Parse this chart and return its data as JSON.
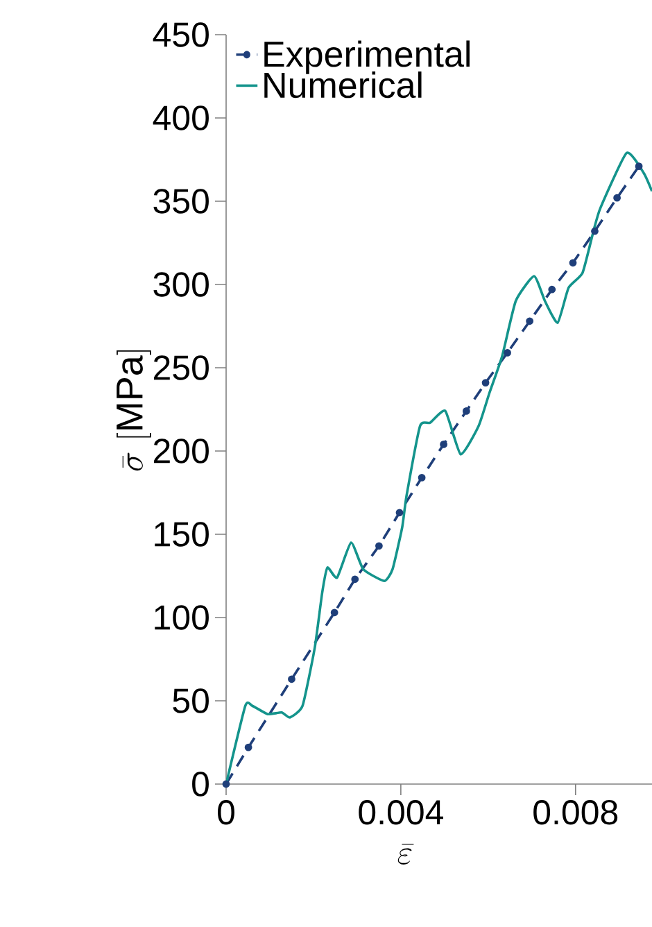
{
  "chart_data": {
    "type": "line",
    "xlabel": "\\bar{\\varepsilon}",
    "ylabel": "\\bar{\\sigma}\\ [\\mathrm{MPa}]",
    "xlim": [
      0,
      0.00975
    ],
    "ylim": [
      0,
      450
    ],
    "xticks": [
      0,
      0.004,
      0.008
    ],
    "yticks": [
      0,
      50,
      100,
      150,
      200,
      250,
      300,
      350,
      400,
      450
    ],
    "legend": "top left",
    "grid": false,
    "series": [
      {
        "name": "Experimental",
        "color": "#1f3f7a",
        "line_style": "dashed",
        "marker": "circle",
        "x": [
          0,
          0.00051,
          0.0015,
          0.00248,
          0.00295,
          0.0035,
          0.00397,
          0.00448,
          0.00498,
          0.0055,
          0.00594,
          0.00644,
          0.00695,
          0.00746,
          0.00794,
          0.00844,
          0.00895,
          0.00945
        ],
        "values": [
          0,
          22,
          63,
          103,
          123,
          143,
          163,
          184,
          204,
          224,
          241,
          259,
          278,
          297,
          313,
          332,
          352,
          371
        ]
      },
      {
        "name": "Numerical",
        "color": "#14948c",
        "line_style": "solid",
        "marker": "none",
        "x": [
          0,
          0.00044,
          0.0006,
          0.00095,
          0.00127,
          0.00146,
          0.00175,
          0.00203,
          0.0022,
          0.00232,
          0.00254,
          0.00286,
          0.00314,
          0.00362,
          0.00381,
          0.00403,
          0.00413,
          0.00444,
          0.00467,
          0.00502,
          0.00537,
          0.00578,
          0.00603,
          0.00632,
          0.00663,
          0.00705,
          0.0073,
          0.00759,
          0.00784,
          0.00816,
          0.00841,
          0.00857,
          0.00917,
          0.00956,
          0.00975
        ],
        "values": [
          0,
          47,
          47,
          42,
          43,
          40,
          47,
          82,
          115,
          130,
          124,
          145,
          129,
          122,
          129,
          154,
          173,
          215,
          217,
          224,
          198,
          215,
          235,
          257,
          290,
          305,
          290,
          277,
          298,
          307,
          332,
          346,
          379,
          367,
          356
        ]
      }
    ]
  }
}
